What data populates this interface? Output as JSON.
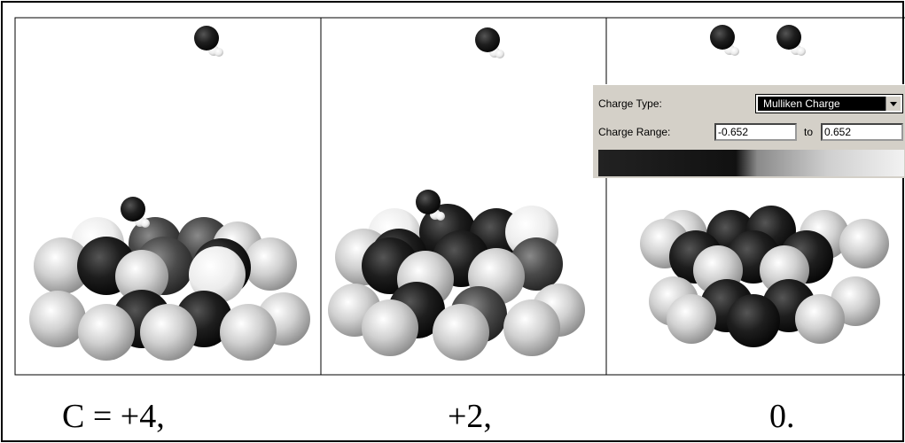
{
  "captions": [
    "C = +4,",
    "+2,",
    "0."
  ],
  "charge_panel": {
    "type_label": "Charge Type:",
    "type_value": "Mulliken Charge",
    "range_label": "Charge Range:",
    "range_min": "-0.652",
    "range_to": "to",
    "range_max": "0.652"
  }
}
